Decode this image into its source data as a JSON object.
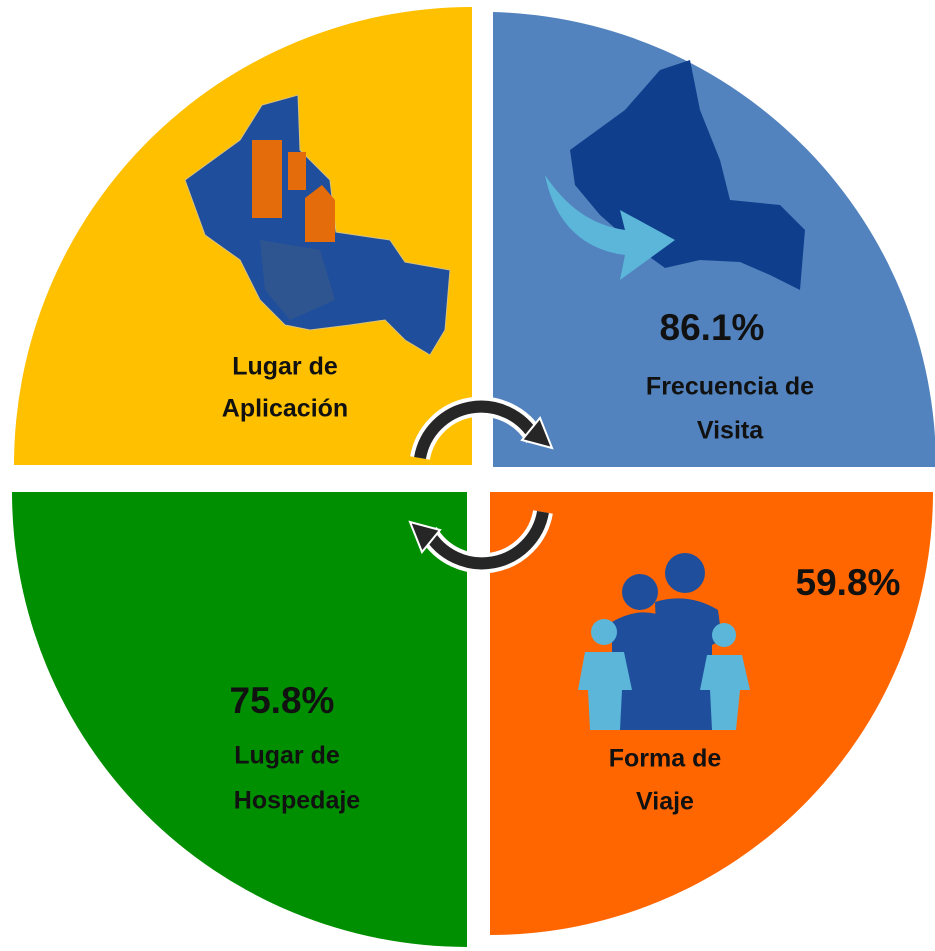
{
  "quadrants": [
    {
      "lines": [
        "Lugar de",
        "Aplicación"
      ]
    },
    {
      "value": "86.1%",
      "lines": [
        "Frecuencia de",
        "Visita"
      ]
    },
    {
      "value": "59.8%",
      "lines": [
        "Forma de",
        "Viaje"
      ]
    },
    {
      "value": "75.8%",
      "lines": [
        "Lugar de",
        "Hospedaje"
      ]
    }
  ]
}
